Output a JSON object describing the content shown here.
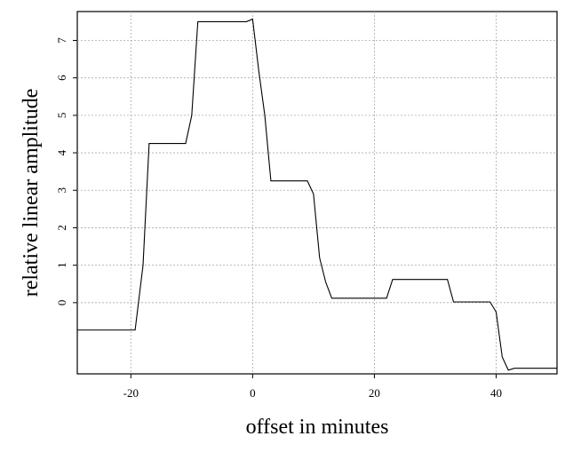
{
  "chart_data": {
    "type": "line",
    "xlabel": "offset in minutes",
    "ylabel": "relative linear amplitude",
    "x": [
      -28.8,
      -19.3,
      -18,
      -17,
      -11,
      -10,
      -9,
      -1,
      0,
      1,
      2,
      3,
      9,
      10,
      11,
      12,
      13,
      22,
      23,
      32,
      33,
      39,
      40,
      41,
      42,
      43,
      50
    ],
    "series": [
      {
        "color": "#000000",
        "values": [
          -0.73,
          -0.73,
          1.0,
          4.25,
          4.25,
          5.0,
          7.5,
          7.5,
          7.57,
          6.2,
          5.0,
          3.25,
          3.25,
          2.9,
          1.2,
          0.55,
          0.12,
          0.12,
          0.62,
          0.62,
          0.02,
          0.02,
          -0.25,
          -1.45,
          -1.8,
          -1.75,
          -1.75
        ]
      }
    ],
    "xlim": [
      -28.8,
      50
    ],
    "ylim": [
      -1.9,
      7.77
    ],
    "xticks": [
      -20,
      0,
      20,
      40
    ],
    "yticks": [
      0,
      1,
      2,
      3,
      4,
      5,
      6,
      7
    ],
    "grid": true
  }
}
